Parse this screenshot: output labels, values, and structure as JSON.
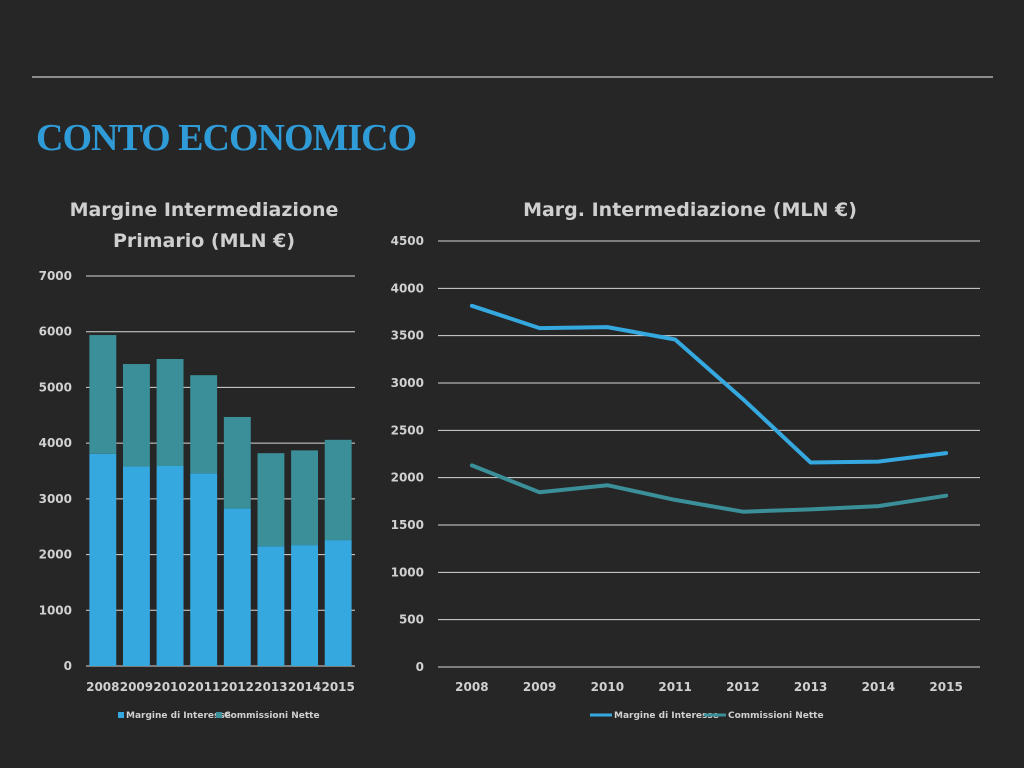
{
  "slide": {
    "title": "CONTO ECONOMICO"
  },
  "colors": {
    "interesse": "#35a8e0",
    "commissioni": "#3b8f98",
    "grid": "#d6d6d6",
    "background": "#262626"
  },
  "chart_data": [
    {
      "type": "bar",
      "stacked": true,
      "title_lines": [
        "Margine Intermediazione",
        "Primario (MLN €)"
      ],
      "categories": [
        "2008",
        "2009",
        "2010",
        "2011",
        "2012",
        "2013",
        "2014",
        "2015"
      ],
      "series": [
        {
          "name": "Margine di Interesse",
          "values": [
            3810,
            3580,
            3590,
            3460,
            2830,
            2150,
            2170,
            2260
          ]
        },
        {
          "name": "Commissioni Nette",
          "values": [
            2130,
            1840,
            1920,
            1760,
            1640,
            1670,
            1700,
            1800
          ]
        }
      ],
      "ylim": [
        0,
        7000
      ],
      "yticks": [
        0,
        1000,
        2000,
        3000,
        4000,
        5000,
        6000,
        7000
      ],
      "grid": true,
      "legend": "bottom"
    },
    {
      "type": "line",
      "title": "Marg. Intermediazione (MLN €)",
      "categories": [
        "2008",
        "2009",
        "2010",
        "2011",
        "2012",
        "2013",
        "2014",
        "2015"
      ],
      "series": [
        {
          "name": "Margine di Interesse",
          "values": [
            3815,
            3580,
            3590,
            3460,
            2830,
            2160,
            2170,
            2260
          ]
        },
        {
          "name": "Commissioni Nette",
          "values": [
            2130,
            1845,
            1920,
            1765,
            1640,
            1665,
            1700,
            1810
          ]
        }
      ],
      "ylim": [
        0,
        4500
      ],
      "yticks": [
        0,
        500,
        1000,
        1500,
        2000,
        2500,
        3000,
        3500,
        4000,
        4500
      ],
      "grid": true,
      "legend": "bottom"
    }
  ]
}
